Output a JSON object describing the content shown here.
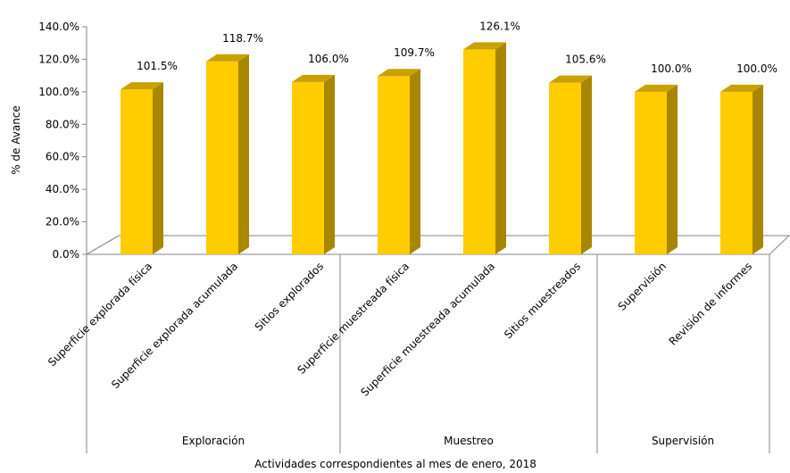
{
  "chart_data": {
    "type": "bar",
    "style": "3d-column",
    "categories": [
      "Superficie explorada física",
      "Superficie explorada acumulada",
      "Sitios explorados",
      "Superficie muestreada física",
      "Superficie muestreada acumulada",
      "Sitios muestreados",
      "Supervisión",
      "Revisión de informes"
    ],
    "values": [
      101.5,
      118.7,
      106.0,
      109.7,
      126.1,
      105.6,
      100.0,
      100.0
    ],
    "value_labels": [
      "101.5%",
      "118.7%",
      "106.0%",
      "109.7%",
      "126.1%",
      "105.6%",
      "100.0%",
      "100.0%"
    ],
    "groups": [
      {
        "label": "Exploración",
        "count": 3
      },
      {
        "label": "Muestreo",
        "count": 3
      },
      {
        "label": "Supervisión",
        "count": 2
      }
    ],
    "ylabel": "% de Avance",
    "xlabel": "Actividades correspondientes al mes de enero, 2018",
    "ylim": [
      0,
      140
    ],
    "y_ticks": [
      0,
      20,
      40,
      60,
      80,
      100,
      120,
      140
    ],
    "y_tick_labels": [
      "0.0%",
      "20.0%",
      "40.0%",
      "60.0%",
      "80.0%",
      "100.0%",
      "120.0%",
      "140.0%"
    ],
    "grid": false,
    "legend": "none",
    "colors": {
      "bar_front": "#FFCC00",
      "bar_side": "#A88700",
      "bar_top": "#C8A200",
      "axis": "#868686"
    }
  }
}
